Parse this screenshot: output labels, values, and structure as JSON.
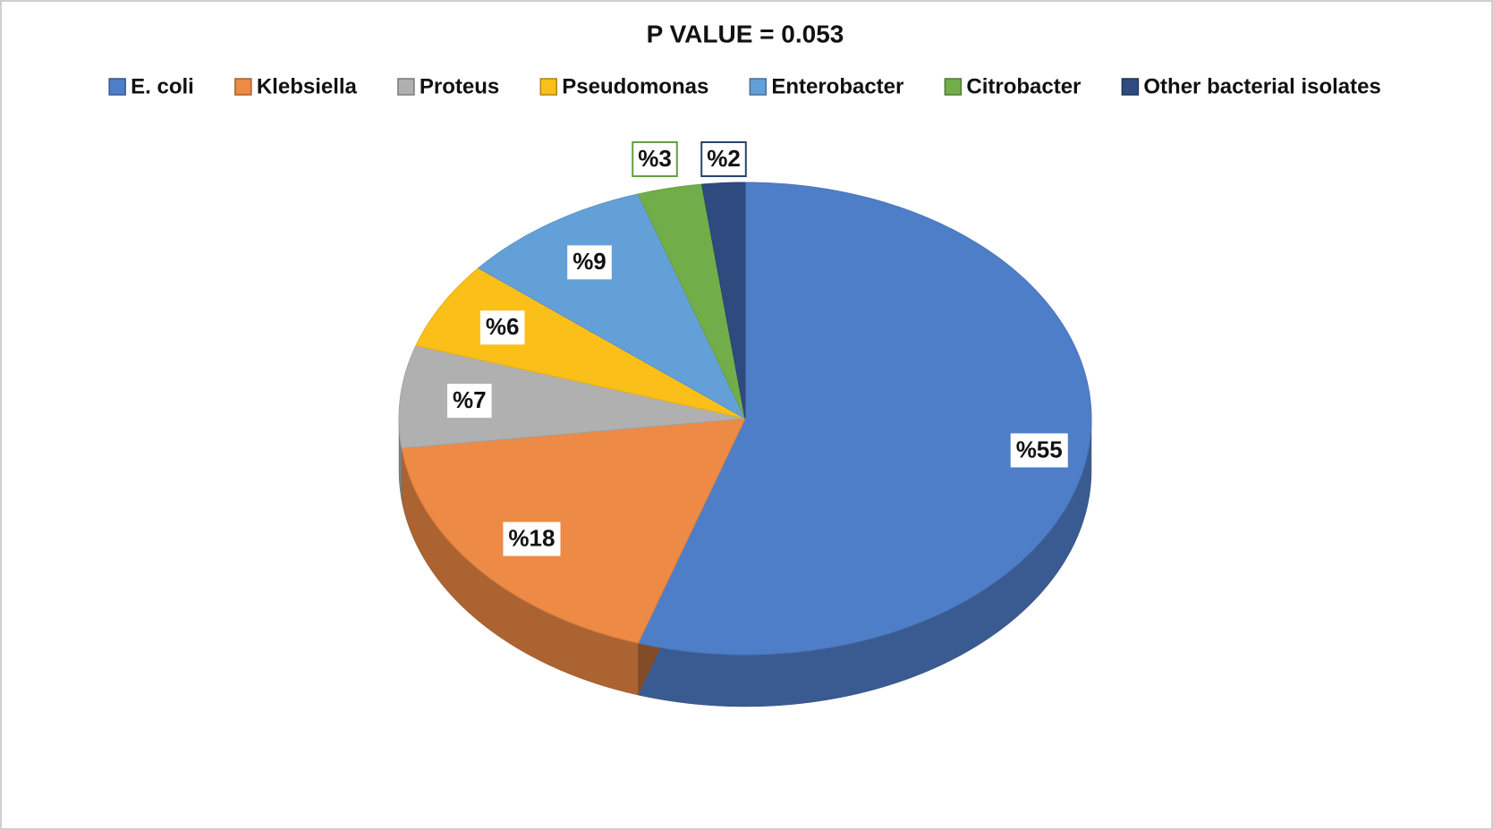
{
  "chart_data": {
    "type": "pie",
    "title": "P VALUE = 0.053",
    "categories": [
      "E. coli",
      "Klebsiella",
      "Proteus",
      "Pseudomonas",
      "Enterobacter",
      "Citrobacter",
      "Other bacterial isolates"
    ],
    "values": [
      55,
      18,
      7,
      6,
      9,
      3,
      2
    ],
    "value_labels": [
      "%55",
      "%18",
      "%7",
      "%6",
      "%9",
      "%3",
      "%2"
    ],
    "colors": [
      "#4f7ec9",
      "#ed8a45",
      "#b0b0b0",
      "#fbbf1a",
      "#64a0d8",
      "#71ae4a",
      "#2f4a7e"
    ],
    "legend": "top"
  }
}
